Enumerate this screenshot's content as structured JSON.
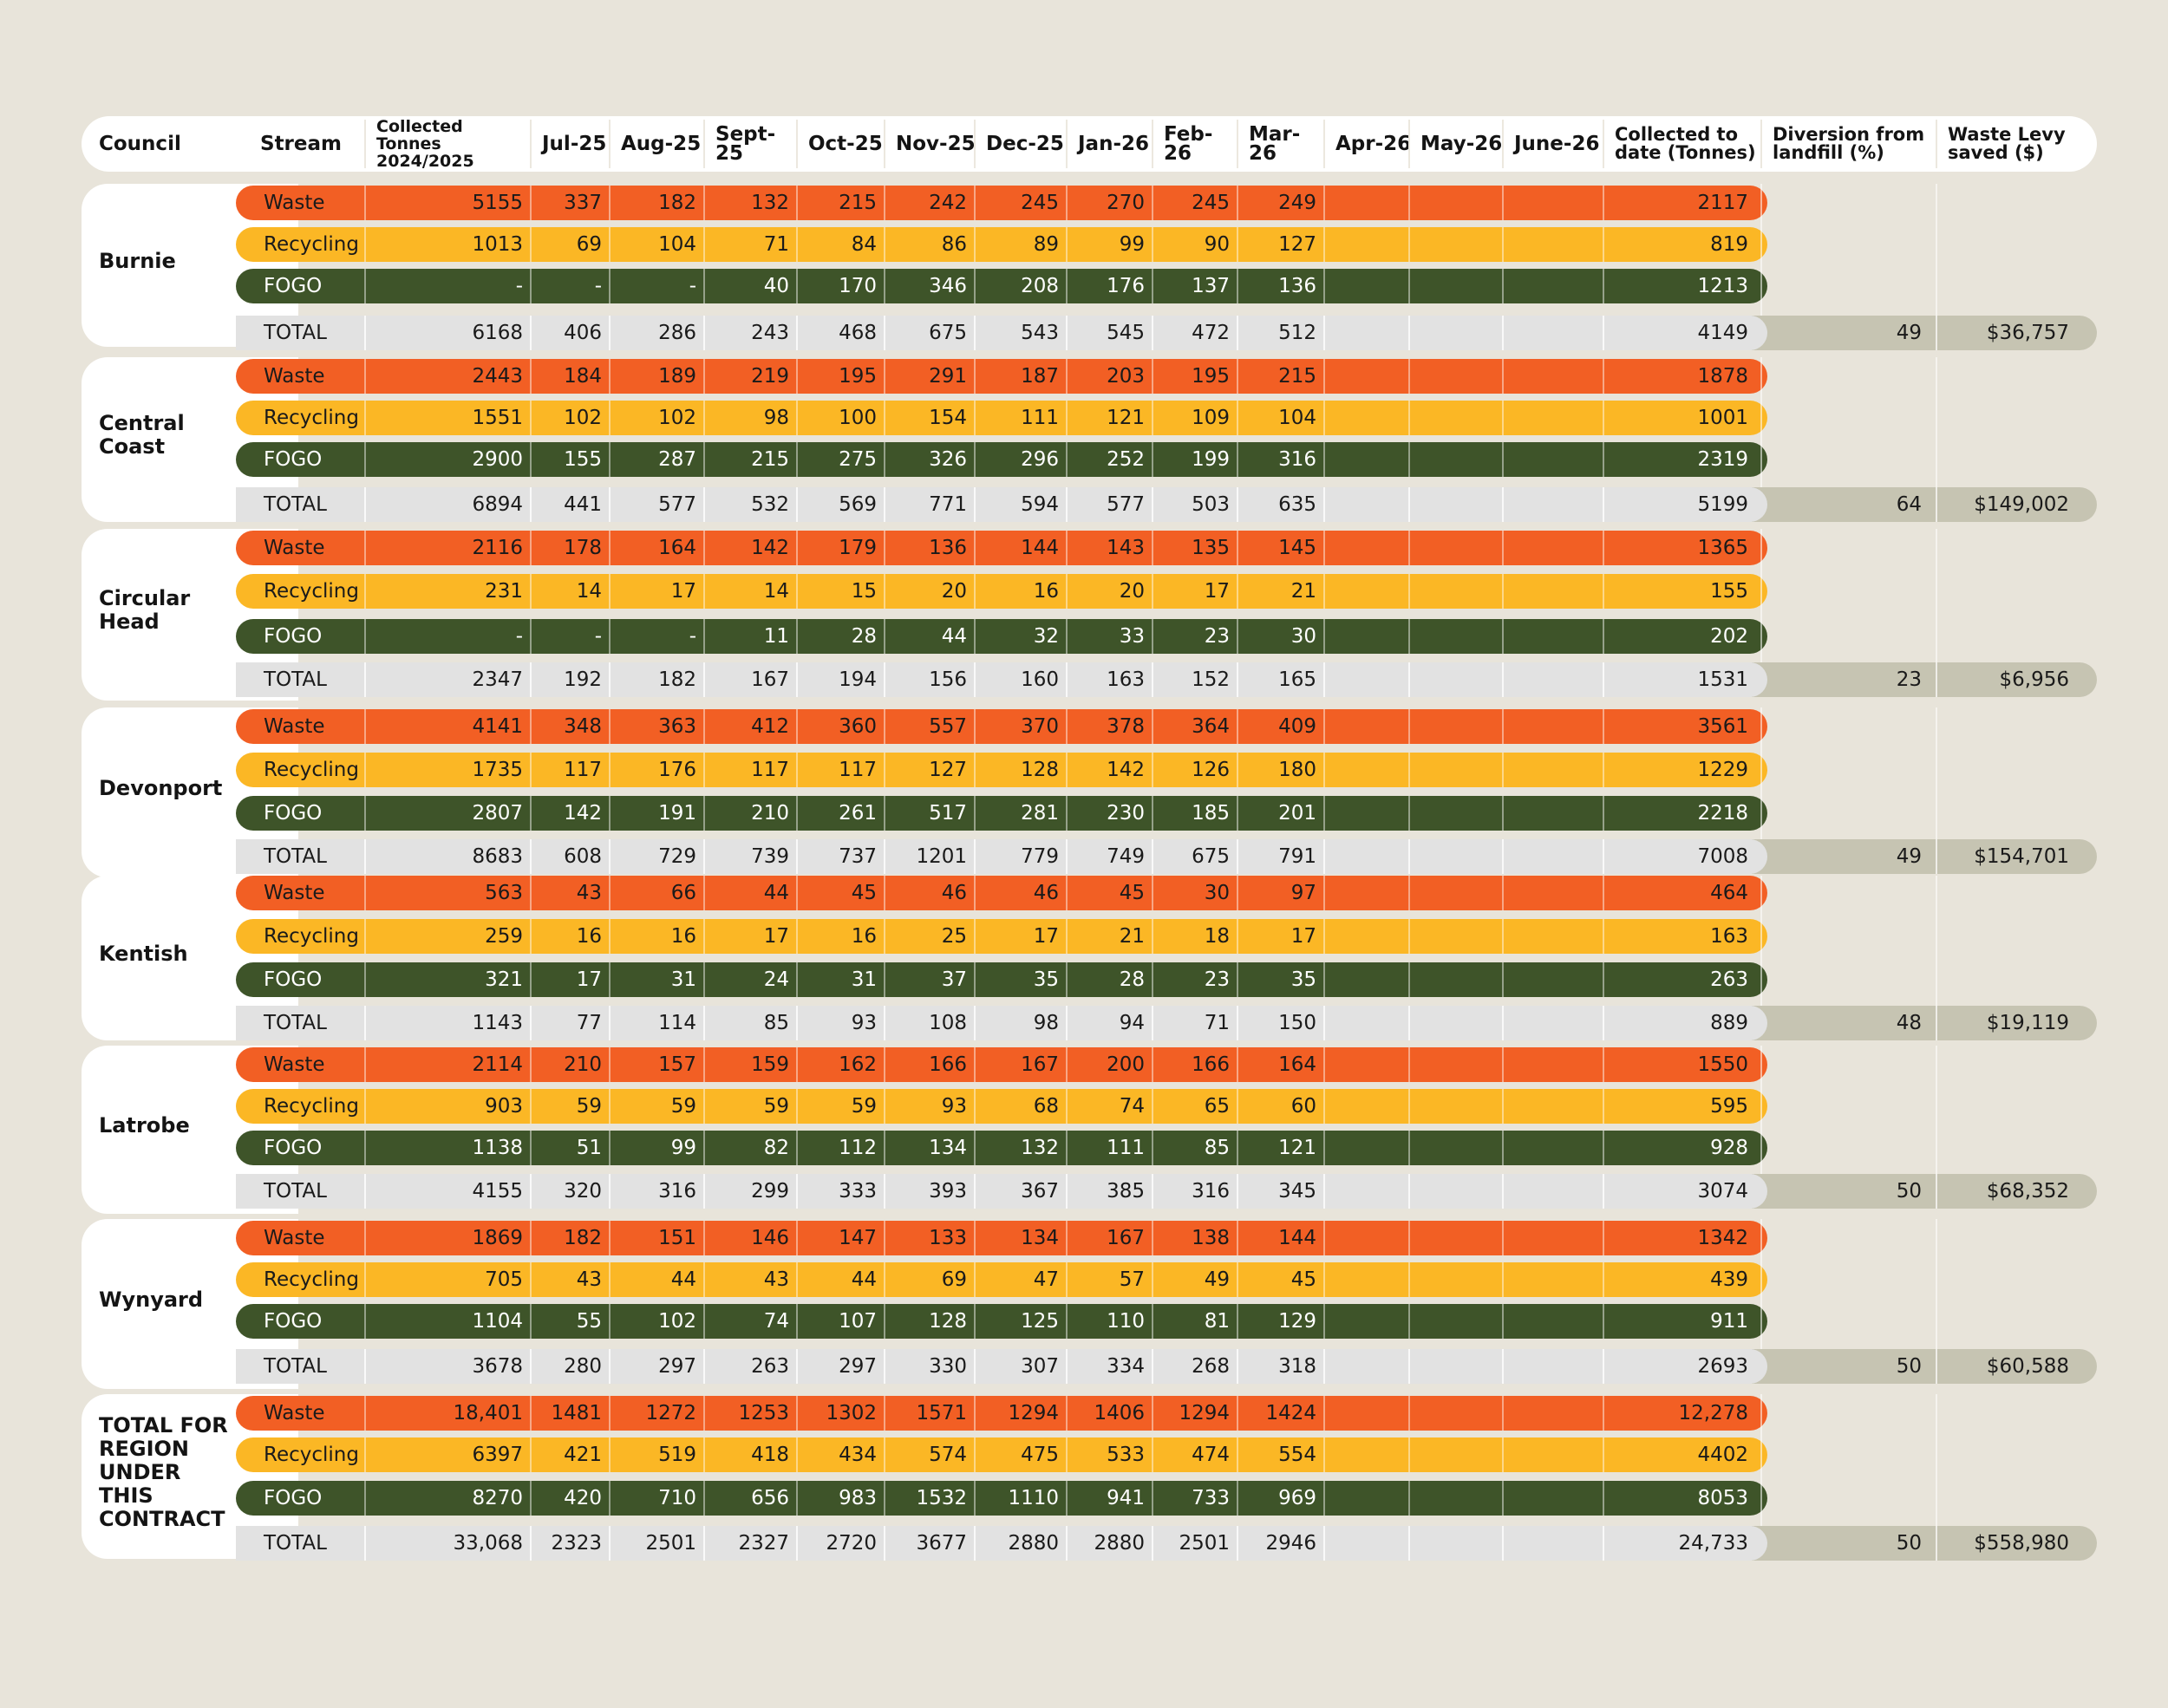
{
  "chart_data": {
    "type": "table",
    "columns": [
      "Council",
      "Stream",
      "Collected Tonnes 2024/2025",
      "Jul-25",
      "Aug-25",
      "Sept-25",
      "Oct-25",
      "Nov-25",
      "Dec-25",
      "Jan-26",
      "Feb-26",
      "Mar-26",
      "Apr-26",
      "May-26",
      "June-26",
      "Collected to date (Tonnes)",
      "Diversion from landfill (%)",
      "Waste Levy saved ($)"
    ],
    "councils": [
      {
        "name": "Burnie",
        "rows": [
          {
            "stream": "Waste",
            "values": [
              "5155",
              "337",
              "182",
              "132",
              "215",
              "242",
              "245",
              "270",
              "245",
              "249",
              "",
              "",
              "",
              "2117"
            ]
          },
          {
            "stream": "Recycling",
            "values": [
              "1013",
              "69",
              "104",
              "71",
              "84",
              "86",
              "89",
              "99",
              "90",
              "127",
              "",
              "",
              "",
              "819"
            ]
          },
          {
            "stream": "FOGO",
            "values": [
              "-",
              "-",
              "-",
              "40",
              "170",
              "346",
              "208",
              "176",
              "137",
              "136",
              "",
              "",
              "",
              "1213"
            ]
          },
          {
            "stream": "TOTAL",
            "values": [
              "6168",
              "406",
              "286",
              "243",
              "468",
              "675",
              "543",
              "545",
              "472",
              "512",
              "",
              "",
              "",
              "4149"
            ]
          }
        ],
        "diversion": "49",
        "levy": "$36,757"
      },
      {
        "name": "Central Coast",
        "rows": [
          {
            "stream": "Waste",
            "values": [
              "2443",
              "184",
              "189",
              "219",
              "195",
              "291",
              "187",
              "203",
              "195",
              "215",
              "",
              "",
              "",
              "1878"
            ]
          },
          {
            "stream": "Recycling",
            "values": [
              "1551",
              "102",
              "102",
              "98",
              "100",
              "154",
              "111",
              "121",
              "109",
              "104",
              "",
              "",
              "",
              "1001"
            ]
          },
          {
            "stream": "FOGO",
            "values": [
              "2900",
              "155",
              "287",
              "215",
              "275",
              "326",
              "296",
              "252",
              "199",
              "316",
              "",
              "",
              "",
              "2319"
            ]
          },
          {
            "stream": "TOTAL",
            "values": [
              "6894",
              "441",
              "577",
              "532",
              "569",
              "771",
              "594",
              "577",
              "503",
              "635",
              "",
              "",
              "",
              "5199"
            ]
          }
        ],
        "diversion": "64",
        "levy": "$149,002"
      },
      {
        "name": "Circular Head",
        "rows": [
          {
            "stream": "Waste",
            "values": [
              "2116",
              "178",
              "164",
              "142",
              "179",
              "136",
              "144",
              "143",
              "135",
              "145",
              "",
              "",
              "",
              "1365"
            ]
          },
          {
            "stream": "Recycling",
            "values": [
              "231",
              "14",
              "17",
              "14",
              "15",
              "20",
              "16",
              "20",
              "17",
              "21",
              "",
              "",
              "",
              "155"
            ]
          },
          {
            "stream": "FOGO",
            "values": [
              "-",
              "-",
              "-",
              "11",
              "28",
              "44",
              "32",
              "33",
              "23",
              "30",
              "",
              "",
              "",
              "202"
            ]
          },
          {
            "stream": "TOTAL",
            "values": [
              "2347",
              "192",
              "182",
              "167",
              "194",
              "156",
              "160",
              "163",
              "152",
              "165",
              "",
              "",
              "",
              "1531"
            ]
          }
        ],
        "diversion": "23",
        "levy": "$6,956"
      },
      {
        "name": "Devonport",
        "rows": [
          {
            "stream": "Waste",
            "values": [
              "4141",
              "348",
              "363",
              "412",
              "360",
              "557",
              "370",
              "378",
              "364",
              "409",
              "",
              "",
              "",
              "3561"
            ]
          },
          {
            "stream": "Recycling",
            "values": [
              "1735",
              "117",
              "176",
              "117",
              "117",
              "127",
              "128",
              "142",
              "126",
              "180",
              "",
              "",
              "",
              "1229"
            ]
          },
          {
            "stream": "FOGO",
            "values": [
              "2807",
              "142",
              "191",
              "210",
              "261",
              "517",
              "281",
              "230",
              "185",
              "201",
              "",
              "",
              "",
              "2218"
            ]
          },
          {
            "stream": "TOTAL",
            "values": [
              "8683",
              "608",
              "729",
              "739",
              "737",
              "1201",
              "779",
              "749",
              "675",
              "791",
              "",
              "",
              "",
              "7008"
            ]
          }
        ],
        "diversion": "49",
        "levy": "$154,701"
      },
      {
        "name": "Kentish",
        "rows": [
          {
            "stream": "Waste",
            "values": [
              "563",
              "43",
              "66",
              "44",
              "45",
              "46",
              "46",
              "45",
              "30",
              "97",
              "",
              "",
              "",
              "464"
            ]
          },
          {
            "stream": "Recycling",
            "values": [
              "259",
              "16",
              "16",
              "17",
              "16",
              "25",
              "17",
              "21",
              "18",
              "17",
              "",
              "",
              "",
              "163"
            ]
          },
          {
            "stream": "FOGO",
            "values": [
              "321",
              "17",
              "31",
              "24",
              "31",
              "37",
              "35",
              "28",
              "23",
              "35",
              "",
              "",
              "",
              "263"
            ]
          },
          {
            "stream": "TOTAL",
            "values": [
              "1143",
              "77",
              "114",
              "85",
              "93",
              "108",
              "98",
              "94",
              "71",
              "150",
              "",
              "",
              "",
              "889"
            ]
          }
        ],
        "diversion": "48",
        "levy": "$19,119"
      },
      {
        "name": "Latrobe",
        "rows": [
          {
            "stream": "Waste",
            "values": [
              "2114",
              "210",
              "157",
              "159",
              "162",
              "166",
              "167",
              "200",
              "166",
              "164",
              "",
              "",
              "",
              "1550"
            ]
          },
          {
            "stream": "Recycling",
            "values": [
              "903",
              "59",
              "59",
              "59",
              "59",
              "93",
              "68",
              "74",
              "65",
              "60",
              "",
              "",
              "",
              "595"
            ]
          },
          {
            "stream": "FOGO",
            "values": [
              "1138",
              "51",
              "99",
              "82",
              "112",
              "134",
              "132",
              "111",
              "85",
              "121",
              "",
              "",
              "",
              "928"
            ]
          },
          {
            "stream": "TOTAL",
            "values": [
              "4155",
              "320",
              "316",
              "299",
              "333",
              "393",
              "367",
              "385",
              "316",
              "345",
              "",
              "",
              "",
              "3074"
            ]
          }
        ],
        "diversion": "50",
        "levy": "$68,352"
      },
      {
        "name": "Wynyard",
        "rows": [
          {
            "stream": "Waste",
            "values": [
              "1869",
              "182",
              "151",
              "146",
              "147",
              "133",
              "134",
              "167",
              "138",
              "144",
              "",
              "",
              "",
              "1342"
            ]
          },
          {
            "stream": "Recycling",
            "values": [
              "705",
              "43",
              "44",
              "43",
              "44",
              "69",
              "47",
              "57",
              "49",
              "45",
              "",
              "",
              "",
              "439"
            ]
          },
          {
            "stream": "FOGO",
            "values": [
              "1104",
              "55",
              "102",
              "74",
              "107",
              "128",
              "125",
              "110",
              "81",
              "129",
              "",
              "",
              "",
              "911"
            ]
          },
          {
            "stream": "TOTAL",
            "values": [
              "3678",
              "280",
              "297",
              "263",
              "297",
              "330",
              "307",
              "334",
              "268",
              "318",
              "",
              "",
              "",
              "2693"
            ]
          }
        ],
        "diversion": "50",
        "levy": "$60,588"
      },
      {
        "name": "TOTAL FOR REGION UNDER THIS CONTRACT",
        "rows": [
          {
            "stream": "Waste",
            "values": [
              "18,401",
              "1481",
              "1272",
              "1253",
              "1302",
              "1571",
              "1294",
              "1406",
              "1294",
              "1424",
              "",
              "",
              "",
              "12,278"
            ]
          },
          {
            "stream": "Recycling",
            "values": [
              "6397",
              "421",
              "519",
              "418",
              "434",
              "574",
              "475",
              "533",
              "474",
              "554",
              "",
              "",
              "",
              "4402"
            ]
          },
          {
            "stream": "FOGO",
            "values": [
              "8270",
              "420",
              "710",
              "656",
              "983",
              "1532",
              "1110",
              "941",
              "733",
              "969",
              "",
              "",
              "",
              "8053"
            ]
          },
          {
            "stream": "TOTAL",
            "values": [
              "33,068",
              "2323",
              "2501",
              "2327",
              "2720",
              "3677",
              "2880",
              "2880",
              "2501",
              "2946",
              "",
              "",
              "",
              "24,733"
            ]
          }
        ],
        "diversion": "50",
        "levy": "$558,980"
      }
    ],
    "stream_colors": {
      "Waste": "#f25f24",
      "Recycling": "#fbb725",
      "FOGO": "#3e5429",
      "TOTAL": "#e2e2e2"
    },
    "summary_color": "#c6c4b2"
  }
}
